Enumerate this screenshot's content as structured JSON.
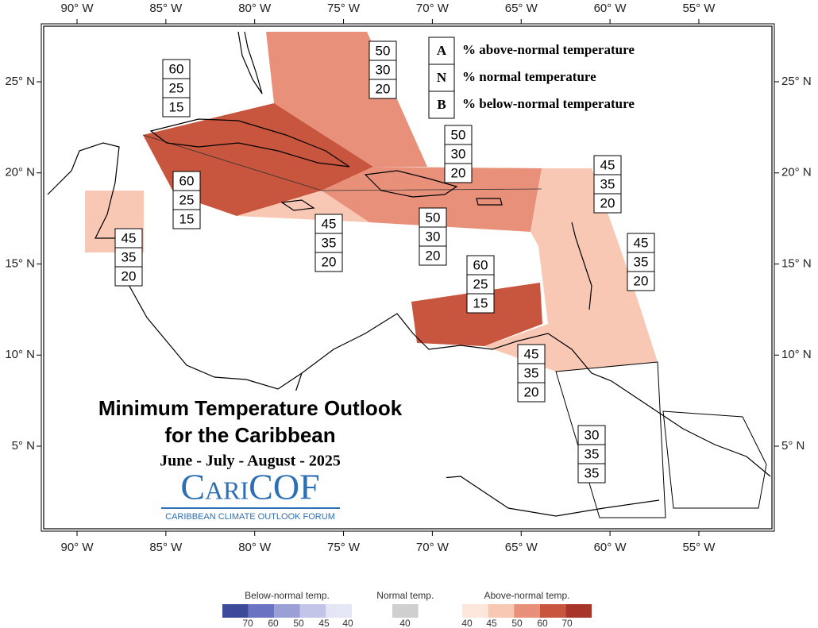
{
  "axes": {
    "longitude_labels": [
      "90° W",
      "85° W",
      "80° W",
      "75° W",
      "70° W",
      "65° W",
      "60° W",
      "55° W"
    ],
    "latitude_labels": [
      "25° N",
      "20° N",
      "15° N",
      "10° N",
      "5° N"
    ]
  },
  "key": {
    "rows": [
      {
        "letter": "A",
        "text": "% above-normal temperature"
      },
      {
        "letter": "N",
        "text": "% normal temperature"
      },
      {
        "letter": "B",
        "text": "% below-normal temperature"
      }
    ]
  },
  "regions": [
    {
      "values": [
        50,
        30,
        20
      ]
    },
    {
      "values": [
        60,
        25,
        15
      ]
    },
    {
      "values": [
        60,
        25,
        15
      ]
    },
    {
      "values": [
        45,
        35,
        20
      ]
    },
    {
      "values": [
        45,
        35,
        20
      ]
    },
    {
      "values": [
        50,
        30,
        20
      ]
    },
    {
      "values": [
        50,
        30,
        20
      ]
    },
    {
      "values": [
        45,
        35,
        20
      ]
    },
    {
      "values": [
        45,
        35,
        20
      ]
    },
    {
      "values": [
        60,
        25,
        15
      ]
    },
    {
      "values": [
        45,
        35,
        20
      ]
    },
    {
      "values": [
        30,
        35,
        35
      ]
    }
  ],
  "title": {
    "line1": "Minimum Temperature Outlook",
    "line2": "for the Caribbean",
    "season": "June - July - August - 2025"
  },
  "logo": {
    "name": "CariCOF",
    "tagline": "CARIBBEAN CLIMATE OUTLOOK FORUM"
  },
  "legend": {
    "below": {
      "title": "Below-normal temp.",
      "ticks": [
        70,
        60,
        50,
        45,
        40
      ]
    },
    "normal": {
      "title": "Normal temp.",
      "ticks": [
        40
      ]
    },
    "above": {
      "title": "Above-normal temp.",
      "ticks": [
        40,
        45,
        50,
        60,
        70
      ]
    }
  }
}
